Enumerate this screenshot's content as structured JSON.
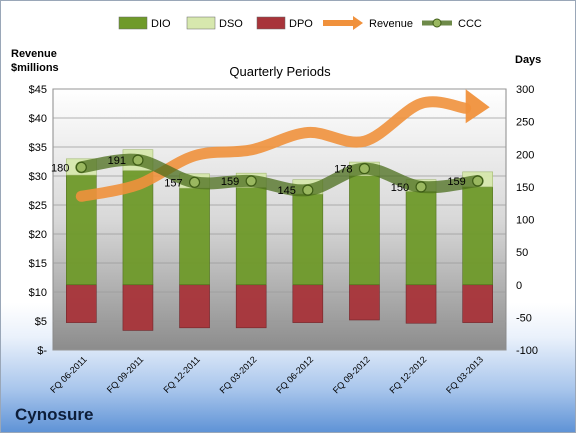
{
  "chart_data": {
    "type": "bar",
    "title": "Quarterly Periods",
    "y_left_label_line1": "Revenue",
    "y_left_label_line2": "$millions",
    "y_right_label": "Days",
    "categories": [
      "FQ 06-2011",
      "FQ 09-2011",
      "FQ 12-2011",
      "FQ 03-2012",
      "FQ 06-2012",
      "FQ 09-2012",
      "FQ 12-2012",
      "FQ 03-2013"
    ],
    "left_axis": {
      "min": 0,
      "max": 45,
      "step": 5,
      "ticks": [
        "$-",
        "$5",
        "$10",
        "$15",
        "$20",
        "$25",
        "$30",
        "$35",
        "$40",
        "$45"
      ]
    },
    "right_axis": {
      "min": -100,
      "max": 300,
      "step": 50,
      "ticks": [
        "-100",
        "-50",
        "0",
        "50",
        "100",
        "150",
        "200",
        "250",
        "300"
      ]
    },
    "series": [
      {
        "name": "DIO",
        "axis": "right",
        "kind": "stacked-bar",
        "color": "#6f9a2a",
        "values": [
          168,
          175,
          148,
          149,
          139,
          167,
          143,
          150
        ]
      },
      {
        "name": "DSO",
        "axis": "right",
        "kind": "stacked-bar",
        "color": "#d7e8ae",
        "values": [
          25,
          32,
          22,
          22,
          22,
          21,
          18,
          23
        ]
      },
      {
        "name": "DPO",
        "axis": "right",
        "kind": "negative-bar",
        "color": "#a8343a",
        "values": [
          58,
          70,
          66,
          66,
          58,
          54,
          59,
          58
        ]
      },
      {
        "name": "Revenue",
        "axis": "left",
        "kind": "arrow-line",
        "color": "#f0913c",
        "values": [
          26.5,
          28.5,
          33.5,
          34.5,
          37.5,
          36,
          42.5,
          41.5
        ]
      },
      {
        "name": "CCC",
        "axis": "right",
        "kind": "line",
        "color": "#4b6e1c",
        "values": [
          180,
          191,
          157,
          159,
          145,
          178,
          150,
          159
        ]
      }
    ],
    "ccc_labels": [
      "180",
      "191",
      "157",
      "159",
      "145",
      "178",
      "150",
      "159"
    ],
    "legend": {
      "position": "top",
      "items": [
        "DIO",
        "DSO",
        "DPO",
        "Revenue",
        "CCC"
      ]
    },
    "grid": true
  },
  "company": "Cynosure"
}
